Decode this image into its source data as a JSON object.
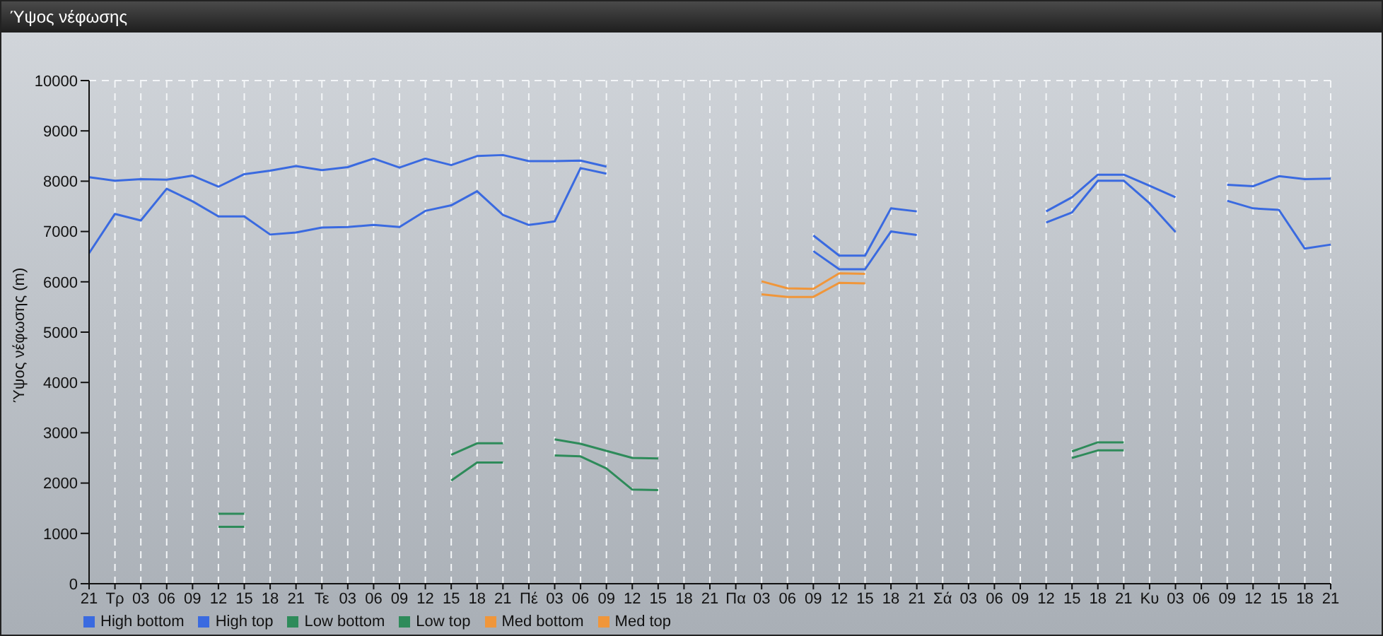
{
  "chart_data": {
    "type": "line",
    "title": "Ύψος νέφωσης",
    "ylabel": "Ύψος νέφωσης (m)",
    "categories": [
      "21",
      "Τρ",
      "03",
      "06",
      "09",
      "12",
      "15",
      "18",
      "21",
      "Τε",
      "03",
      "06",
      "09",
      "12",
      "15",
      "18",
      "21",
      "Πέ",
      "03",
      "06",
      "09",
      "12",
      "15",
      "18",
      "21",
      "Πα",
      "03",
      "06",
      "09",
      "12",
      "15",
      "18",
      "21",
      "Σά",
      "03",
      "06",
      "09",
      "12",
      "15",
      "18",
      "21",
      "Κυ",
      "03",
      "06",
      "09",
      "12",
      "15",
      "18",
      "21"
    ],
    "series": [
      {
        "name": "Low bottom",
        "color": "#2e8b5a",
        "values": [
          null,
          null,
          null,
          null,
          null,
          1130,
          1130,
          null,
          null,
          null,
          null,
          null,
          null,
          null,
          2050,
          2410,
          2410,
          null,
          2550,
          2530,
          2290,
          1870,
          1860,
          null,
          null,
          null,
          null,
          null,
          null,
          null,
          null,
          null,
          null,
          null,
          null,
          null,
          null,
          null,
          2500,
          2650,
          2650,
          null,
          null,
          null,
          null,
          null,
          null,
          null,
          null
        ]
      },
      {
        "name": "Low top",
        "color": "#2e8b5a",
        "values": [
          null,
          null,
          null,
          null,
          null,
          1390,
          1390,
          null,
          null,
          null,
          null,
          null,
          null,
          null,
          2560,
          2790,
          2790,
          null,
          2870,
          2780,
          2640,
          2500,
          2490,
          null,
          null,
          null,
          null,
          null,
          null,
          null,
          null,
          null,
          null,
          null,
          null,
          null,
          null,
          null,
          2630,
          2810,
          2810,
          null,
          null,
          null,
          null,
          null,
          null,
          null,
          null
        ]
      },
      {
        "name": "Med bottom",
        "color": "#f0963a",
        "values": [
          null,
          null,
          null,
          null,
          null,
          null,
          null,
          null,
          null,
          null,
          null,
          null,
          null,
          null,
          null,
          null,
          null,
          null,
          null,
          null,
          null,
          null,
          null,
          null,
          null,
          null,
          5750,
          5700,
          5700,
          5980,
          5970,
          null,
          null,
          null,
          null,
          null,
          null,
          null,
          null,
          null,
          null,
          null,
          null,
          null,
          null,
          null,
          null,
          null,
          null
        ]
      },
      {
        "name": "Med top",
        "color": "#f0963a",
        "values": [
          null,
          null,
          null,
          null,
          null,
          null,
          null,
          null,
          null,
          null,
          null,
          null,
          null,
          null,
          null,
          null,
          null,
          null,
          null,
          null,
          null,
          null,
          null,
          null,
          null,
          null,
          6010,
          5870,
          5860,
          6170,
          6160,
          null,
          null,
          null,
          null,
          null,
          null,
          null,
          null,
          null,
          null,
          null,
          null,
          null,
          null,
          null,
          null,
          null,
          null
        ]
      },
      {
        "name": "High bottom",
        "color": "#3a6ae0",
        "values": [
          6570,
          7350,
          7220,
          7850,
          7600,
          7300,
          7300,
          6940,
          6980,
          7080,
          7090,
          7130,
          7090,
          7410,
          7520,
          7800,
          7330,
          7130,
          7200,
          8260,
          8150,
          null,
          null,
          null,
          null,
          null,
          null,
          null,
          6610,
          6250,
          6250,
          7000,
          6930,
          null,
          null,
          null,
          null,
          7180,
          7380,
          8010,
          8010,
          7560,
          6990,
          null,
          7610,
          7460,
          7430,
          6660,
          6740
        ]
      },
      {
        "name": "High top",
        "color": "#3a6ae0",
        "values": [
          8080,
          8010,
          8040,
          8030,
          8110,
          7890,
          8140,
          8210,
          8300,
          8220,
          8280,
          8450,
          8270,
          8450,
          8320,
          8500,
          8520,
          8400,
          8400,
          8410,
          8290,
          null,
          null,
          null,
          null,
          null,
          null,
          null,
          6920,
          6520,
          6520,
          7460,
          7400,
          null,
          null,
          null,
          null,
          7400,
          7680,
          8130,
          8130,
          7910,
          7680,
          null,
          7930,
          7900,
          8100,
          8040,
          8050
        ]
      }
    ],
    "ylim": [
      0,
      10000
    ],
    "yticks": [
      0,
      1000,
      2000,
      3000,
      4000,
      5000,
      6000,
      7000,
      8000,
      9000,
      10000
    ],
    "grid": true,
    "legend": "bottom left"
  }
}
